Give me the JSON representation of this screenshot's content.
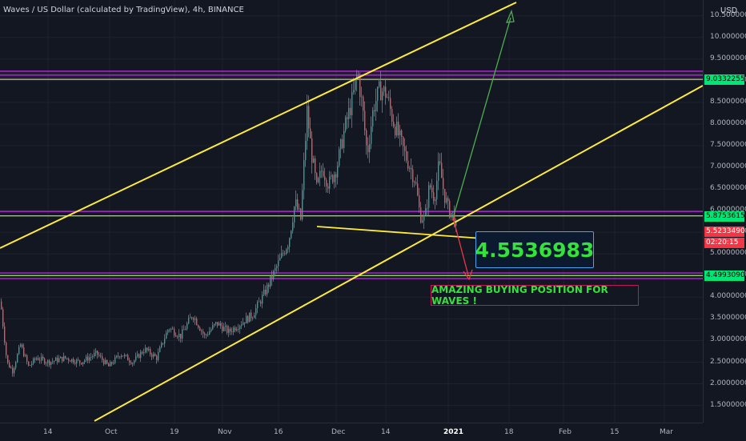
{
  "chart_data": {
    "type": "candlestick",
    "title": "Waves / US Dollar (calculated by TradingView), 4h, BINANCE",
    "currency": "USD",
    "y_ticks": [
      "10.5000000",
      "10.0000000",
      "9.5000000",
      "9.0000000",
      "8.5000000",
      "8.0000000",
      "7.5000000",
      "7.0000000",
      "6.5000000",
      "6.0000000",
      "5.5000000",
      "5.0000000",
      "4.5000000",
      "4.0000000",
      "3.5000000",
      "3.0000000",
      "2.5000000",
      "2.0000000",
      "1.5000000"
    ],
    "y_tick_values": [
      10.5,
      10.0,
      9.5,
      9.0,
      8.5,
      8.0,
      7.5,
      7.0,
      6.5,
      6.0,
      5.5,
      5.0,
      4.5,
      4.0,
      3.5,
      3.0,
      2.5,
      2.0,
      1.5
    ],
    "x_ticks": [
      "14",
      "Oct",
      "19",
      "Nov",
      "16",
      "Dec",
      "14",
      "2021",
      "18",
      "Feb",
      "15",
      "Mar"
    ],
    "x_tick_bold": [
      "2021"
    ],
    "ylim": [
      1.15,
      10.75
    ],
    "price_tags": [
      {
        "label": "9.0332255",
        "value": 9.0332255,
        "color": "#00e676",
        "text_color": "#000000"
      },
      {
        "label": "5.8753615",
        "value": 5.8753615,
        "color": "#00e676",
        "text_color": "#000000"
      },
      {
        "label": "5.5233490",
        "value": 5.523349,
        "color": "#f23645",
        "text_color": "#ffffff"
      },
      {
        "label": "02:20:15",
        "value": 5.31,
        "color": "#f23645",
        "text_color": "#ffffff"
      },
      {
        "label": "4.4993090",
        "value": 4.499309,
        "color": "#00e676",
        "text_color": "#000000"
      }
    ],
    "horizontal_bands": [
      {
        "value": 9.22,
        "color": "#b02bd6"
      },
      {
        "value": 9.13,
        "color": "#b02bd6"
      },
      {
        "value": 9.03,
        "color": "#9ccc65"
      },
      {
        "value": 5.98,
        "color": "#b02bd6"
      },
      {
        "value": 5.88,
        "color": "#9ccc65"
      },
      {
        "value": 4.56,
        "color": "#b02bd6"
      },
      {
        "value": 4.5,
        "color": "#9ccc65"
      },
      {
        "value": 4.43,
        "color": "#b02bd6"
      }
    ],
    "overlay_price_label": "4.5536983",
    "annotation": "AMAZING BUYING POSITION FOR WAVES !",
    "colors": {
      "up": "#26a69a",
      "down": "#ef5350",
      "trend": "#ffeb3b",
      "background": "#131722"
    }
  }
}
